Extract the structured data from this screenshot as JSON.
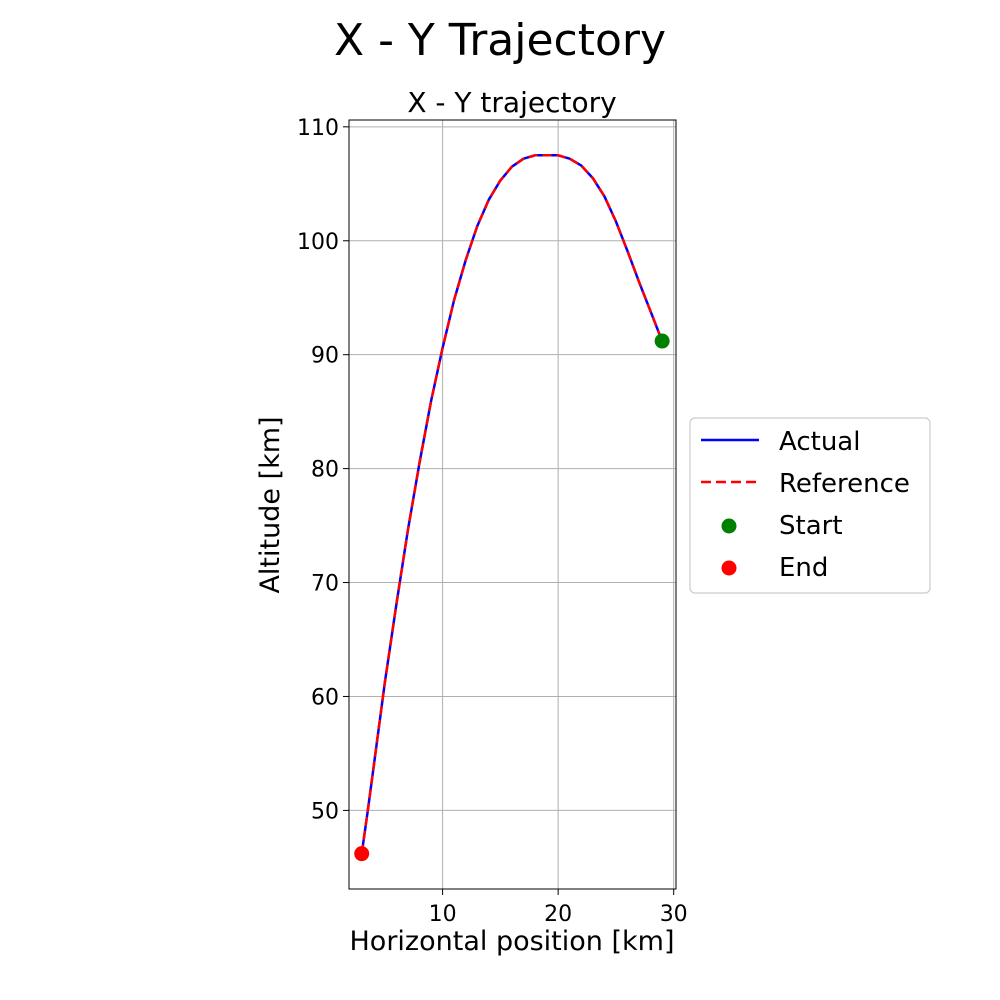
{
  "figure": {
    "suptitle": "X - Y Trajectory"
  },
  "chart_data": {
    "type": "line",
    "title": "X - Y trajectory",
    "xlabel": "Horizontal position [km]",
    "ylabel": "Altitude [km]",
    "xlim": [
      1.9,
      30.2
    ],
    "ylim": [
      43.1,
      110.6
    ],
    "xticks": [
      10,
      20,
      30
    ],
    "yticks": [
      50,
      60,
      70,
      80,
      90,
      100,
      110
    ],
    "grid": true,
    "legend_position": "outside right",
    "series": [
      {
        "name": "Actual",
        "style": "solid",
        "color": "#0000ff",
        "x": [
          3.0,
          3.5,
          4.0,
          5.0,
          6.0,
          7.0,
          8.0,
          9.0,
          10.0,
          11.0,
          12.0,
          13.0,
          14.0,
          15.0,
          16.0,
          17.0,
          18.0,
          19.0,
          20.0,
          21.0,
          22.0,
          23.0,
          24.0,
          25.0,
          26.0,
          27.0,
          28.0,
          29.0
        ],
        "y": [
          46.2,
          49.8,
          53.6,
          61.2,
          68.1,
          74.6,
          80.5,
          85.9,
          90.6,
          94.8,
          98.3,
          101.3,
          103.6,
          105.3,
          106.5,
          107.2,
          107.5,
          107.5,
          107.5,
          107.2,
          106.6,
          105.5,
          103.9,
          101.7,
          99.1,
          96.4,
          93.8,
          91.2
        ]
      },
      {
        "name": "Reference",
        "style": "dashed",
        "color": "#ff0000",
        "x": [
          3.0,
          3.5,
          4.0,
          5.0,
          6.0,
          7.0,
          8.0,
          9.0,
          10.0,
          11.0,
          12.0,
          13.0,
          14.0,
          15.0,
          16.0,
          17.0,
          18.0,
          19.0,
          20.0,
          21.0,
          22.0,
          23.0,
          24.0,
          25.0,
          26.0,
          27.0,
          28.0,
          29.0
        ],
        "y": [
          46.2,
          49.8,
          53.6,
          61.2,
          68.1,
          74.6,
          80.5,
          85.9,
          90.6,
          94.8,
          98.3,
          101.3,
          103.6,
          105.3,
          106.5,
          107.2,
          107.5,
          107.5,
          107.5,
          107.2,
          106.6,
          105.5,
          103.9,
          101.7,
          99.1,
          96.4,
          93.8,
          91.2
        ]
      }
    ],
    "points": [
      {
        "name": "Start",
        "color": "#008000",
        "x": 29.0,
        "y": 91.2
      },
      {
        "name": "End",
        "color": "#ff0000",
        "x": 3.0,
        "y": 46.2
      }
    ]
  }
}
